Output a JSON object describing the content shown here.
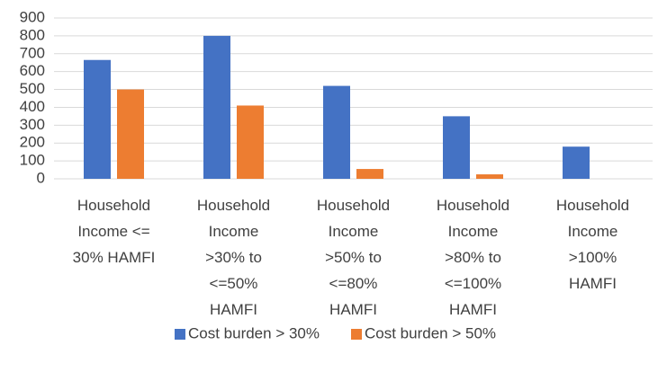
{
  "chart_data": {
    "type": "bar",
    "categories": [
      "Household Income <= 30% HAMFI",
      "Household Income >30% to <=50% HAMFI",
      "Household Income >50% to <=80% HAMFI",
      "Household Income >80% to <=100% HAMFI",
      "Household Income >100% HAMFI"
    ],
    "series": [
      {
        "name": "Cost burden > 30%",
        "color": "#4472c4",
        "values": [
          665,
          800,
          520,
          350,
          180
        ]
      },
      {
        "name": "Cost burden > 50%",
        "color": "#ed7d31",
        "values": [
          500,
          410,
          55,
          25,
          0
        ]
      }
    ],
    "ylim": [
      0,
      900
    ],
    "yticks": [
      0,
      100,
      200,
      300,
      400,
      500,
      600,
      700,
      800,
      900
    ],
    "grid": true,
    "legend": "bottom"
  }
}
